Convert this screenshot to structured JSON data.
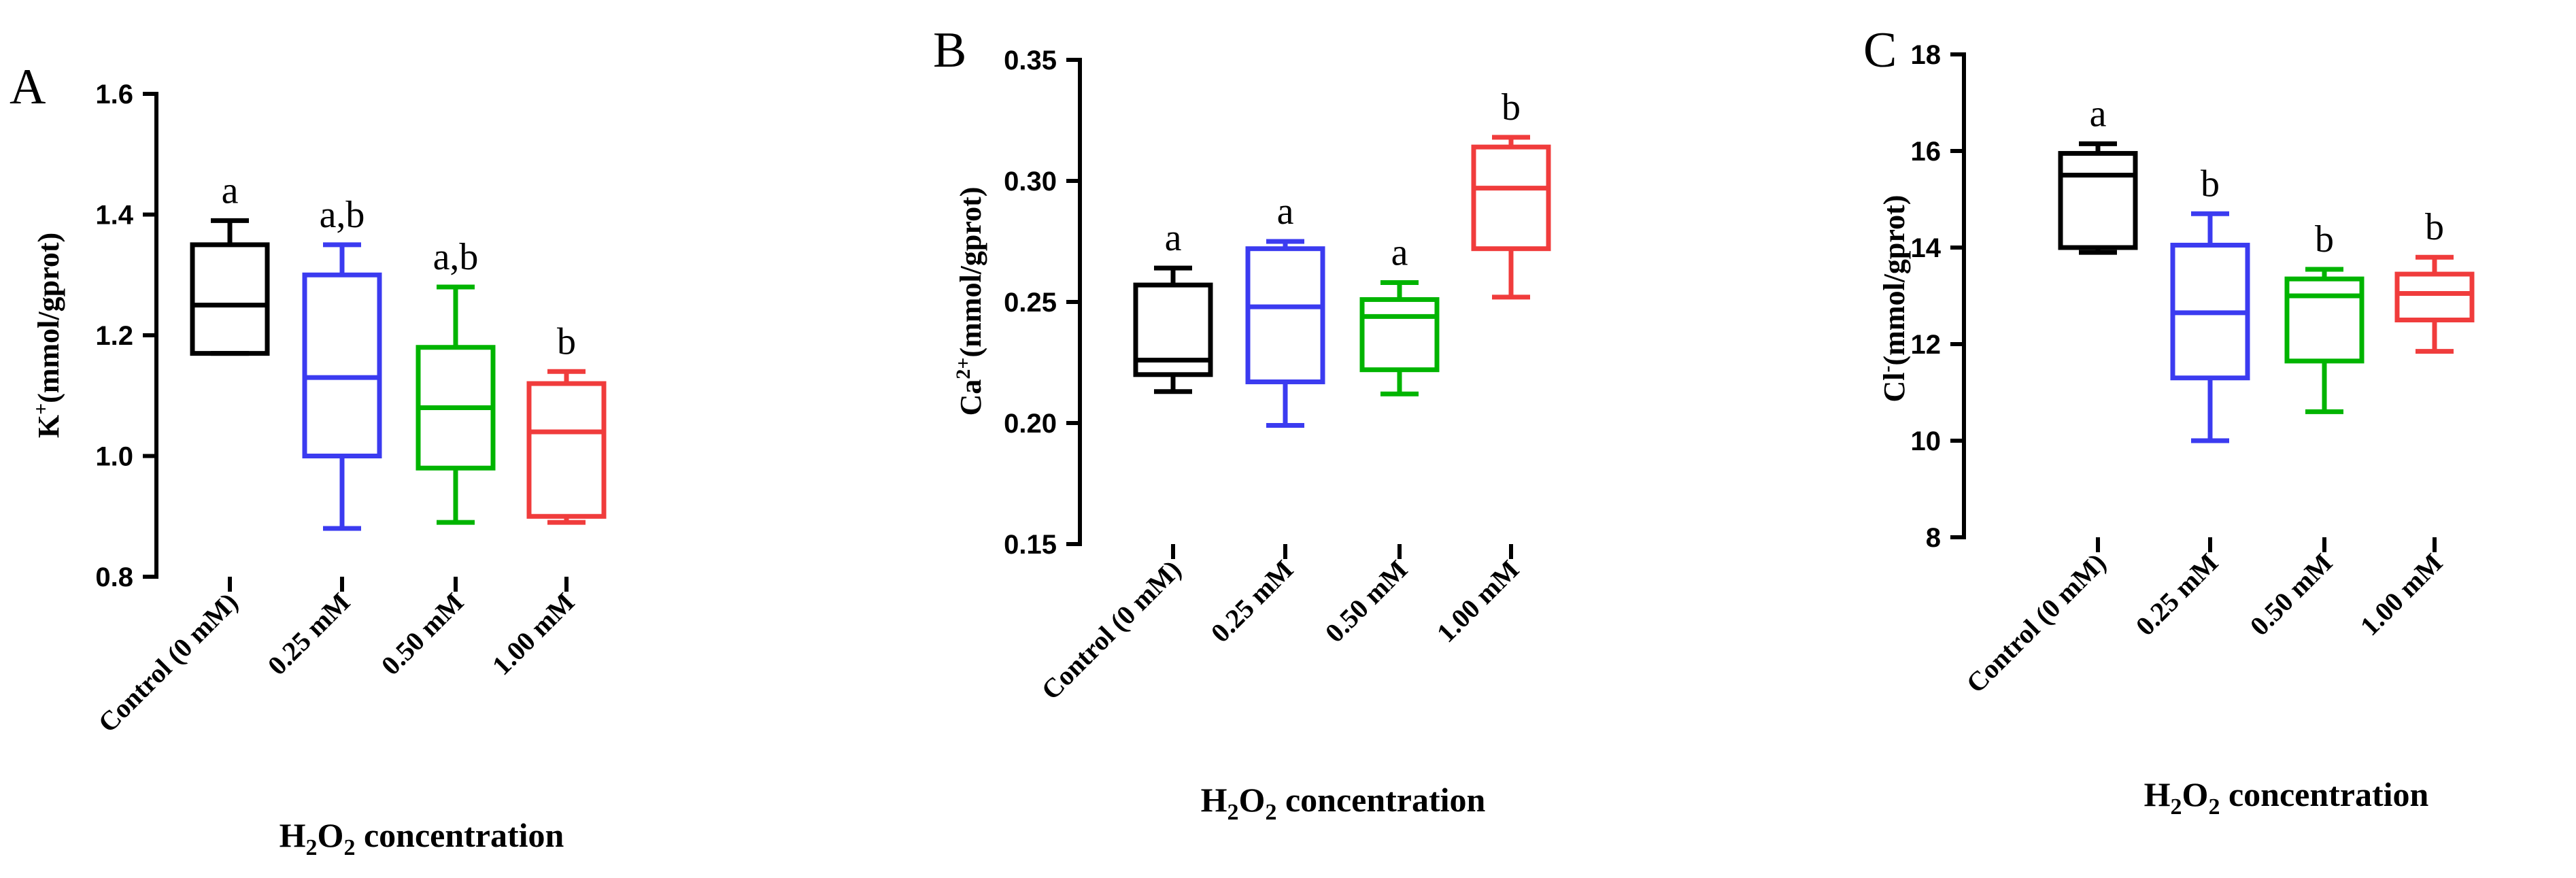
{
  "figure_type": "box-and-whisker plots",
  "chart_data": [
    {
      "panel": "A",
      "type": "box",
      "ylabel_base": "K",
      "ylabel_sup": "+",
      "ylabel_rest": "(mmol/gprot)",
      "xlabel_prefix": "H",
      "xlabel_sub1": "2",
      "xlabel_mid": "O",
      "xlabel_sub2": "2",
      "xlabel_suffix": " concentration",
      "ylim": [
        0.8,
        1.6
      ],
      "yticks": [
        "0.8",
        "1.0",
        "1.2",
        "1.4",
        "1.6"
      ],
      "categories": [
        "Control (0 mM)",
        "0.25 mM",
        "0.50 mM",
        "1.00 mM"
      ],
      "colors": [
        "#000000",
        "#3b3bf0",
        "#00b400",
        "#f03c3c"
      ],
      "boxes": [
        {
          "min": 1.17,
          "q1": 1.17,
          "median": 1.25,
          "q3": 1.35,
          "max": 1.39
        },
        {
          "min": 0.88,
          "q1": 1.0,
          "median": 1.13,
          "q3": 1.3,
          "max": 1.35
        },
        {
          "min": 0.89,
          "q1": 0.98,
          "median": 1.08,
          "q3": 1.18,
          "max": 1.28
        },
        {
          "min": 0.89,
          "q1": 0.9,
          "median": 1.04,
          "q3": 1.12,
          "max": 1.14
        }
      ],
      "significance": [
        "a",
        "a,b",
        "a,b",
        "b"
      ]
    },
    {
      "panel": "B",
      "type": "box",
      "ylabel_base": "Ca",
      "ylabel_sup": "2+",
      "ylabel_rest": "(mmol/gprot)",
      "xlabel_prefix": "H",
      "xlabel_sub1": "2",
      "xlabel_mid": "O",
      "xlabel_sub2": "2",
      "xlabel_suffix": " concentration",
      "ylim": [
        0.15,
        0.35
      ],
      "yticks": [
        "0.15",
        "0.20",
        "0.25",
        "0.30",
        "0.35"
      ],
      "categories": [
        "Control (0 mM)",
        "0.25 mM",
        "0.50 mM",
        "1.00 mM"
      ],
      "colors": [
        "#000000",
        "#3b3bf0",
        "#00b400",
        "#f03c3c"
      ],
      "boxes": [
        {
          "min": 0.213,
          "q1": 0.22,
          "median": 0.226,
          "q3": 0.257,
          "max": 0.264
        },
        {
          "min": 0.199,
          "q1": 0.217,
          "median": 0.248,
          "q3": 0.272,
          "max": 0.275
        },
        {
          "min": 0.212,
          "q1": 0.222,
          "median": 0.244,
          "q3": 0.251,
          "max": 0.258
        },
        {
          "min": 0.252,
          "q1": 0.272,
          "median": 0.297,
          "q3": 0.314,
          "max": 0.318
        }
      ],
      "significance": [
        "a",
        "a",
        "a",
        "b"
      ]
    },
    {
      "panel": "C",
      "type": "box",
      "ylabel_base": "Cl",
      "ylabel_sup": "-",
      "ylabel_rest": "(mmol/gprot)",
      "xlabel_prefix": "H",
      "xlabel_sub1": "2",
      "xlabel_mid": "O",
      "xlabel_sub2": "2",
      "xlabel_suffix": " concentration",
      "ylim": [
        8,
        18
      ],
      "yticks": [
        "8",
        "10",
        "12",
        "14",
        "16",
        "18"
      ],
      "categories": [
        "Control (0 mM)",
        "0.25 mM",
        "0.50 mM",
        "1.00 mM"
      ],
      "colors": [
        "#000000",
        "#3b3bf0",
        "#00b400",
        "#f03c3c"
      ],
      "boxes": [
        {
          "min": 13.9,
          "q1": 14.0,
          "median": 15.5,
          "q3": 15.95,
          "max": 16.15
        },
        {
          "min": 10.0,
          "q1": 11.3,
          "median": 12.65,
          "q3": 14.05,
          "max": 14.7
        },
        {
          "min": 10.6,
          "q1": 11.65,
          "median": 13.0,
          "q3": 13.35,
          "max": 13.55
        },
        {
          "min": 11.85,
          "q1": 12.5,
          "median": 13.05,
          "q3": 13.45,
          "max": 13.8
        }
      ],
      "significance": [
        "a",
        "b",
        "b",
        "b"
      ]
    }
  ]
}
